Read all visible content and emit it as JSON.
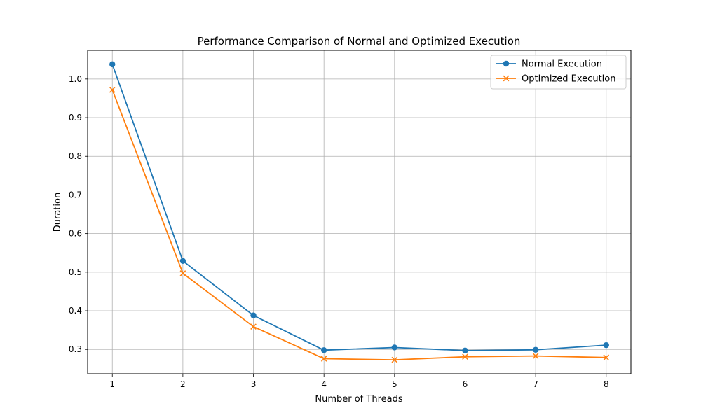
{
  "chart_data": {
    "type": "line",
    "title": "Performance Comparison of Normal and Optimized Execution",
    "xlabel": "Number of Threads",
    "ylabel": "Duration",
    "x": [
      1,
      2,
      3,
      4,
      5,
      6,
      7,
      8
    ],
    "x_ticks": [
      "1",
      "2",
      "3",
      "4",
      "5",
      "6",
      "7",
      "8"
    ],
    "y_ticks": [
      "0.3",
      "0.4",
      "0.5",
      "0.6",
      "0.7",
      "0.8",
      "0.9",
      "1.0"
    ],
    "xlim": [
      0.65,
      8.35
    ],
    "ylim": [
      0.237,
      1.074
    ],
    "grid": true,
    "legend_position": "top-right",
    "series": [
      {
        "name": "Normal Execution",
        "color": "#1f77b4",
        "marker": "circle",
        "values": [
          1.038,
          0.529,
          0.388,
          0.298,
          0.305,
          0.297,
          0.299,
          0.311
        ]
      },
      {
        "name": "Optimized Execution",
        "color": "#ff7f0e",
        "marker": "x",
        "values": [
          0.972,
          0.497,
          0.359,
          0.276,
          0.273,
          0.281,
          0.283,
          0.279
        ]
      }
    ]
  }
}
